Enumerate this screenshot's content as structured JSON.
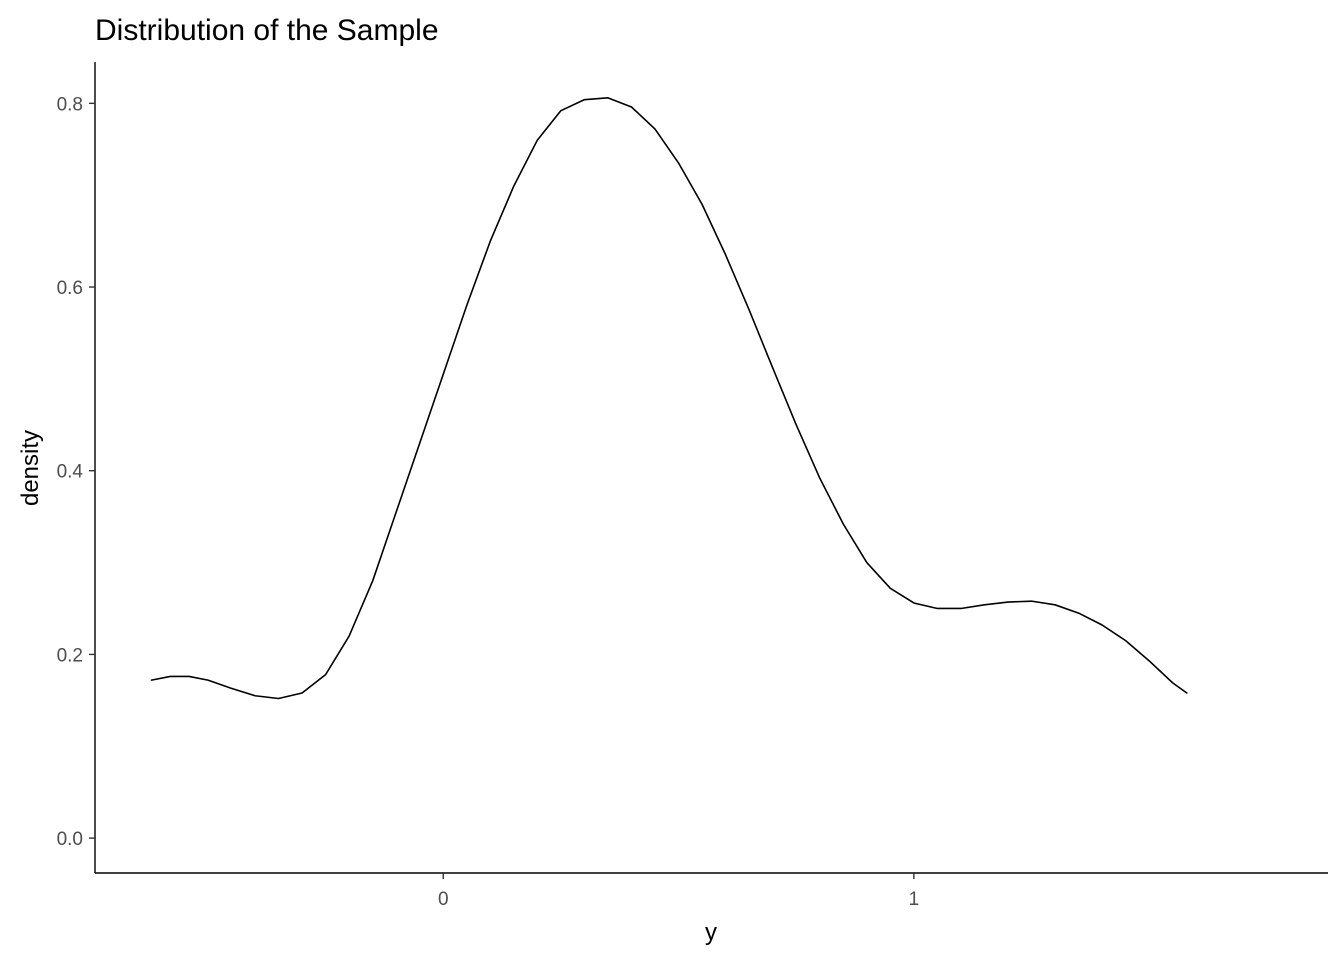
{
  "chart_data": {
    "type": "line",
    "title": "Distribution of the Sample",
    "xlabel": "y",
    "ylabel": "density",
    "xlim": [
      -0.74,
      1.88
    ],
    "ylim": [
      -0.038,
      0.845
    ],
    "x_ticks": [
      {
        "value": 0,
        "label": "0"
      },
      {
        "value": 1,
        "label": "1"
      }
    ],
    "y_ticks": [
      {
        "value": 0.0,
        "label": "0.0"
      },
      {
        "value": 0.2,
        "label": "0.2"
      },
      {
        "value": 0.4,
        "label": "0.4"
      },
      {
        "value": 0.6,
        "label": "0.6"
      },
      {
        "value": 0.8,
        "label": "0.8"
      }
    ],
    "grid": false,
    "legend": "none",
    "series": [
      {
        "color": "#000000",
        "points": [
          [
            -0.62,
            0.172
          ],
          [
            -0.58,
            0.176
          ],
          [
            -0.54,
            0.176
          ],
          [
            -0.5,
            0.172
          ],
          [
            -0.45,
            0.163
          ],
          [
            -0.4,
            0.155
          ],
          [
            -0.35,
            0.152
          ],
          [
            -0.3,
            0.158
          ],
          [
            -0.25,
            0.178
          ],
          [
            -0.2,
            0.22
          ],
          [
            -0.15,
            0.28
          ],
          [
            -0.1,
            0.355
          ],
          [
            -0.05,
            0.43
          ],
          [
            0.0,
            0.505
          ],
          [
            0.05,
            0.58
          ],
          [
            0.1,
            0.65
          ],
          [
            0.15,
            0.71
          ],
          [
            0.2,
            0.76
          ],
          [
            0.25,
            0.792
          ],
          [
            0.3,
            0.804
          ],
          [
            0.35,
            0.806
          ],
          [
            0.4,
            0.796
          ],
          [
            0.45,
            0.772
          ],
          [
            0.5,
            0.735
          ],
          [
            0.55,
            0.69
          ],
          [
            0.6,
            0.635
          ],
          [
            0.65,
            0.575
          ],
          [
            0.7,
            0.512
          ],
          [
            0.75,
            0.45
          ],
          [
            0.8,
            0.392
          ],
          [
            0.85,
            0.342
          ],
          [
            0.9,
            0.3
          ],
          [
            0.95,
            0.272
          ],
          [
            1.0,
            0.256
          ],
          [
            1.05,
            0.25
          ],
          [
            1.1,
            0.25
          ],
          [
            1.15,
            0.254
          ],
          [
            1.2,
            0.257
          ],
          [
            1.25,
            0.258
          ],
          [
            1.3,
            0.254
          ],
          [
            1.35,
            0.245
          ],
          [
            1.4,
            0.232
          ],
          [
            1.45,
            0.215
          ],
          [
            1.5,
            0.193
          ],
          [
            1.55,
            0.169
          ],
          [
            1.58,
            0.158
          ]
        ]
      }
    ]
  }
}
